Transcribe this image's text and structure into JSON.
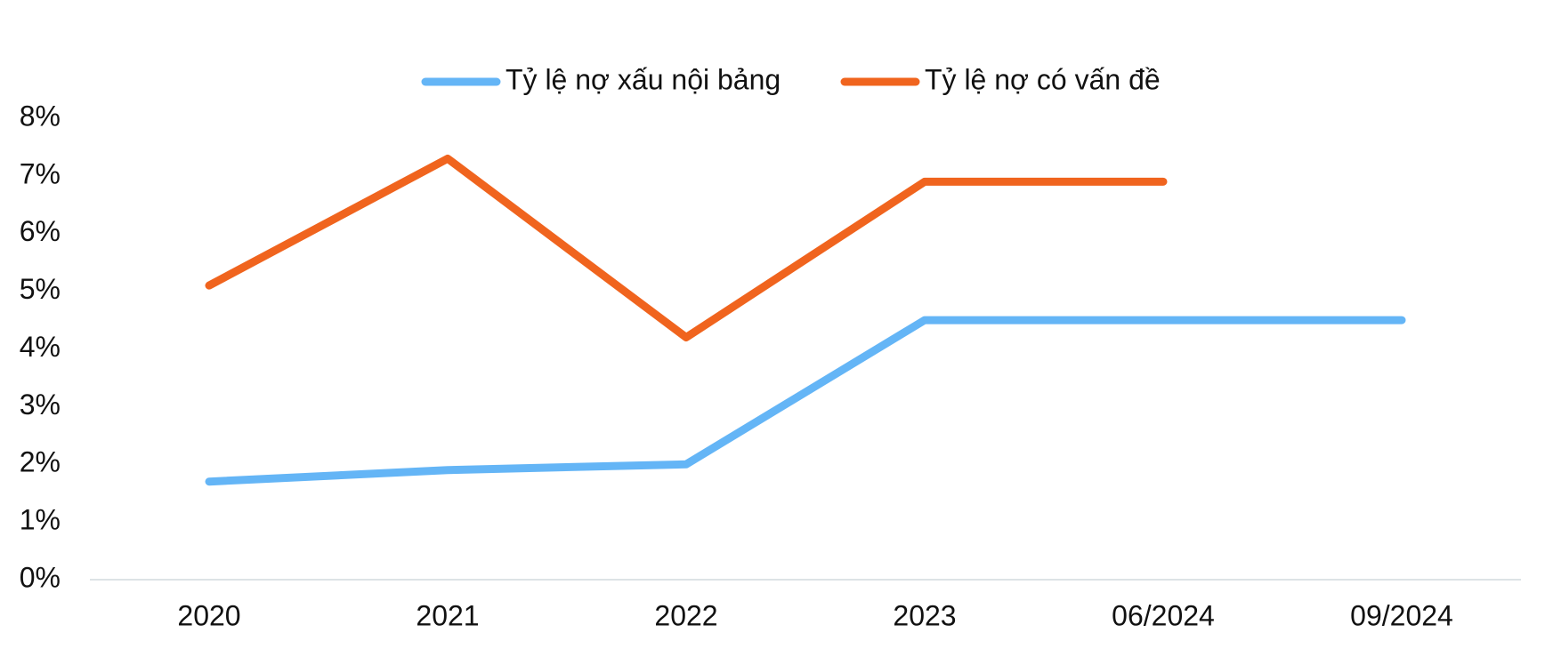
{
  "chart_data": {
    "type": "line",
    "categories": [
      "2020",
      "2021",
      "2022",
      "2023",
      "06/2024",
      "09/2024"
    ],
    "series": [
      {
        "name": "Tỷ lệ nợ xấu nội bảng",
        "color": "#64b5f6",
        "values": [
          1.7,
          1.9,
          2.0,
          4.5,
          4.5,
          4.5
        ]
      },
      {
        "name": "Tỷ lệ nợ có vấn đề",
        "color": "#f0641e",
        "values": [
          5.1,
          7.3,
          4.2,
          6.9,
          6.9,
          null
        ]
      }
    ],
    "ylim": [
      0,
      8
    ],
    "yticks": [
      {
        "value": 0,
        "label": "0%"
      },
      {
        "value": 1,
        "label": "1%"
      },
      {
        "value": 2,
        "label": "2%"
      },
      {
        "value": 3,
        "label": "3%"
      },
      {
        "value": 4,
        "label": "4%"
      },
      {
        "value": 5,
        "label": "5%"
      },
      {
        "value": 6,
        "label": "6%"
      },
      {
        "value": 7,
        "label": "7%"
      },
      {
        "value": 8,
        "label": "8%"
      }
    ],
    "legend": "top"
  }
}
